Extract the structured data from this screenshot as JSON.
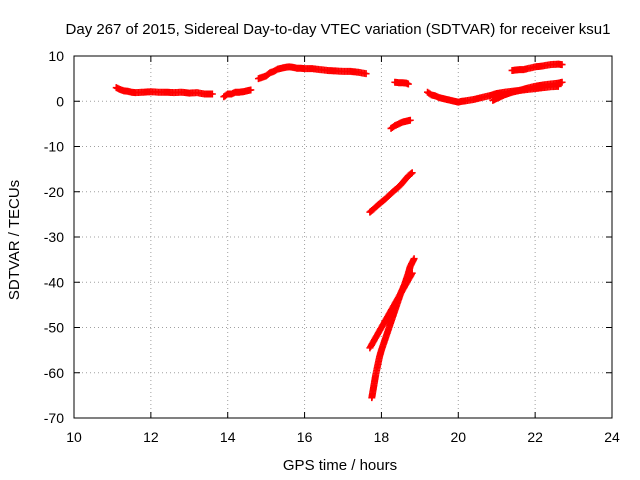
{
  "chart_data": {
    "type": "scatter",
    "title": "Day 267 of 2015, Sidereal Day-to-day VTEC variation (SDTVAR) for receiver ksu1",
    "xlabel": "GPS time / hours",
    "ylabel": "SDTVAR / TECUs",
    "xlim": [
      10,
      24
    ],
    "ylim": [
      -70,
      10
    ],
    "xticks": [
      10,
      12,
      14,
      16,
      18,
      20,
      22,
      24
    ],
    "yticks": [
      10,
      0,
      -10,
      -20,
      -30,
      -40,
      -50,
      -60,
      -70
    ],
    "xtick_labels": [
      "10",
      "12",
      "14",
      "16",
      "18",
      "20",
      "22",
      "24"
    ],
    "ytick_labels": [
      "10",
      "0",
      "-10",
      "-20",
      "-30",
      "-40",
      "-50",
      "-60",
      "-70"
    ],
    "grid": true,
    "marker": "+",
    "color": "#ff0000",
    "series": [
      {
        "points": [
          [
            11.1,
            3.0
          ],
          [
            11.2,
            2.6
          ],
          [
            11.3,
            2.3
          ],
          [
            11.4,
            2.2
          ],
          [
            11.5,
            2.0
          ],
          [
            11.6,
            1.9
          ],
          [
            11.8,
            2.0
          ],
          [
            12.0,
            2.1
          ],
          [
            12.2,
            2.0
          ],
          [
            12.4,
            2.0
          ],
          [
            12.6,
            1.9
          ],
          [
            12.8,
            2.0
          ],
          [
            13.0,
            1.8
          ],
          [
            13.2,
            1.9
          ],
          [
            13.4,
            1.6
          ],
          [
            13.6,
            1.6
          ]
        ]
      },
      {
        "points": [
          [
            13.9,
            1.0
          ],
          [
            14.0,
            1.6
          ],
          [
            14.1,
            1.6
          ],
          [
            14.2,
            2.0
          ],
          [
            14.3,
            2.0
          ],
          [
            14.4,
            2.1
          ],
          [
            14.5,
            2.3
          ],
          [
            14.6,
            2.5
          ]
        ]
      },
      {
        "points": [
          [
            14.8,
            5.0
          ],
          [
            14.9,
            5.3
          ],
          [
            15.0,
            5.6
          ],
          [
            15.1,
            6.3
          ],
          [
            15.2,
            6.6
          ],
          [
            15.3,
            7.1
          ],
          [
            15.4,
            7.3
          ],
          [
            15.5,
            7.5
          ],
          [
            15.6,
            7.6
          ],
          [
            15.7,
            7.5
          ],
          [
            15.8,
            7.3
          ],
          [
            15.9,
            7.3
          ],
          [
            16.0,
            7.2
          ],
          [
            16.2,
            7.2
          ],
          [
            16.4,
            7.0
          ],
          [
            16.6,
            6.8
          ],
          [
            16.8,
            6.7
          ],
          [
            17.0,
            6.6
          ],
          [
            17.2,
            6.6
          ],
          [
            17.4,
            6.4
          ],
          [
            17.6,
            6.1
          ]
        ]
      },
      {
        "points": [
          [
            18.35,
            4.2
          ],
          [
            18.45,
            4.1
          ],
          [
            18.55,
            4.1
          ],
          [
            18.65,
            4.0
          ],
          [
            18.7,
            3.8
          ]
        ]
      },
      {
        "points": [
          [
            18.25,
            -6.0
          ],
          [
            18.35,
            -5.4
          ],
          [
            18.45,
            -5.0
          ],
          [
            18.55,
            -4.6
          ],
          [
            18.65,
            -4.4
          ],
          [
            18.75,
            -4.2
          ]
        ]
      },
      {
        "points": [
          [
            17.7,
            -24.5
          ],
          [
            17.8,
            -23.8
          ],
          [
            17.9,
            -23.0
          ],
          [
            18.0,
            -22.3
          ],
          [
            18.1,
            -21.6
          ],
          [
            18.2,
            -20.8
          ],
          [
            18.3,
            -20.0
          ],
          [
            18.4,
            -19.3
          ],
          [
            18.5,
            -18.5
          ],
          [
            18.6,
            -17.5
          ],
          [
            18.7,
            -16.5
          ],
          [
            18.8,
            -15.8
          ]
        ]
      },
      {
        "points": [
          [
            17.7,
            -54.5
          ],
          [
            17.8,
            -53.0
          ],
          [
            17.9,
            -51.5
          ],
          [
            18.0,
            -50.0
          ],
          [
            18.1,
            -48.5
          ],
          [
            18.2,
            -47.0
          ],
          [
            18.3,
            -45.5
          ],
          [
            18.4,
            -44.0
          ],
          [
            18.5,
            -42.5
          ],
          [
            18.6,
            -41.0
          ],
          [
            18.7,
            -39.5
          ],
          [
            18.8,
            -38.0
          ]
        ]
      },
      {
        "points": [
          [
            17.75,
            -65.5
          ],
          [
            17.8,
            -63.0
          ],
          [
            17.85,
            -60.5
          ],
          [
            17.9,
            -58.5
          ],
          [
            17.95,
            -56.5
          ],
          [
            18.0,
            -55.0
          ],
          [
            18.1,
            -52.5
          ],
          [
            18.2,
            -50.0
          ],
          [
            18.3,
            -47.5
          ],
          [
            18.4,
            -45.0
          ],
          [
            18.5,
            -42.5
          ],
          [
            18.6,
            -40.5
          ],
          [
            18.7,
            -38.0
          ],
          [
            18.75,
            -36.5
          ],
          [
            18.85,
            -34.8
          ]
        ]
      },
      {
        "points": [
          [
            19.2,
            2.0
          ],
          [
            19.3,
            1.4
          ],
          [
            19.4,
            1.2
          ],
          [
            19.5,
            0.8
          ],
          [
            19.6,
            0.6
          ],
          [
            19.7,
            0.4
          ],
          [
            19.8,
            0.2
          ],
          [
            19.9,
            0.0
          ],
          [
            20.0,
            -0.2
          ],
          [
            20.1,
            0.0
          ],
          [
            20.2,
            0.1
          ],
          [
            20.4,
            0.4
          ],
          [
            20.6,
            0.8
          ],
          [
            20.8,
            1.2
          ],
          [
            21.0,
            1.7
          ],
          [
            21.2,
            2.0
          ],
          [
            21.4,
            2.2
          ],
          [
            21.6,
            2.4
          ],
          [
            21.8,
            2.6
          ],
          [
            22.0,
            2.8
          ],
          [
            22.2,
            3.0
          ],
          [
            22.4,
            3.2
          ],
          [
            22.6,
            3.3
          ]
        ]
      },
      {
        "points": [
          [
            20.9,
            0.2
          ],
          [
            21.0,
            0.6
          ],
          [
            21.1,
            1.0
          ],
          [
            21.2,
            1.4
          ],
          [
            21.3,
            1.7
          ],
          [
            21.4,
            2.0
          ],
          [
            21.6,
            2.4
          ],
          [
            21.8,
            2.9
          ],
          [
            22.0,
            3.3
          ],
          [
            22.2,
            3.6
          ],
          [
            22.4,
            3.8
          ],
          [
            22.6,
            4.0
          ],
          [
            22.7,
            4.2
          ]
        ]
      },
      {
        "points": [
          [
            21.4,
            6.8
          ],
          [
            21.5,
            6.9
          ],
          [
            21.6,
            7.0
          ],
          [
            21.7,
            7.0
          ],
          [
            21.8,
            7.2
          ],
          [
            22.0,
            7.6
          ],
          [
            22.2,
            7.8
          ],
          [
            22.4,
            8.1
          ],
          [
            22.6,
            8.2
          ],
          [
            22.7,
            8.1
          ]
        ]
      }
    ]
  }
}
